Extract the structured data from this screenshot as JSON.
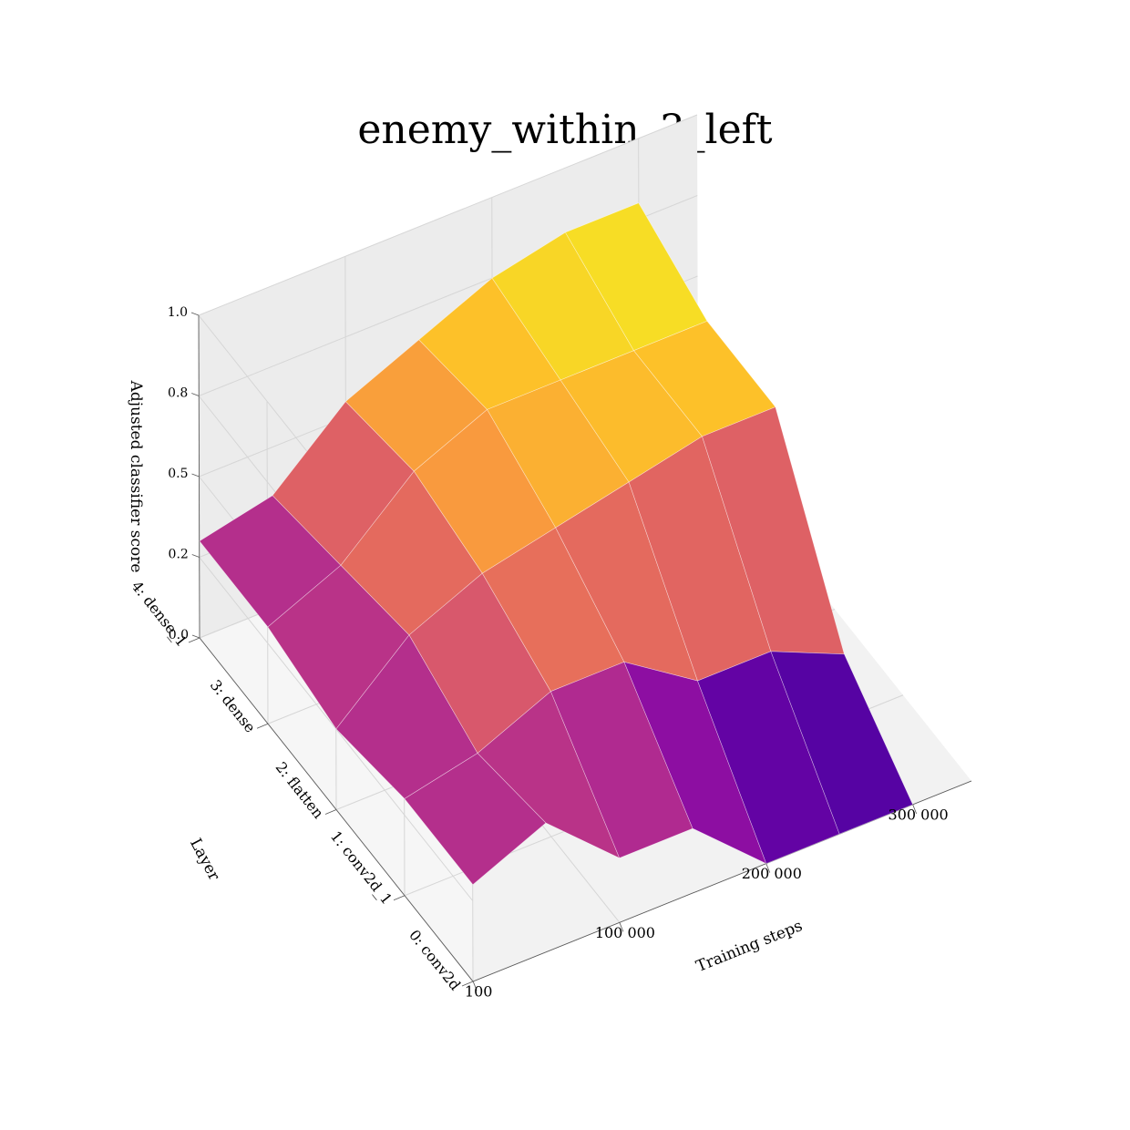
{
  "chart_data": {
    "type": "surface",
    "title": "enemy_within_3_left",
    "xlabel": "Training steps",
    "ylabel": "Layer",
    "zlabel": "Adjusted classifier score",
    "x_tick_labels": [
      "100",
      "100 000",
      "200 000",
      "300 000"
    ],
    "y_tick_labels": [
      "0: conv2d",
      "1: conv2d_1",
      "2: flatten",
      "3: dense",
      "4: dense_1"
    ],
    "z_tick_labels": [
      "0.0",
      "0.2",
      "0.5",
      "0.8",
      "1.0"
    ],
    "x_ticks": [
      100,
      100000,
      200000,
      300000
    ],
    "z_ticks": [
      0.0,
      0.25,
      0.5,
      0.75,
      1.0
    ],
    "x_range": [
      0,
      340000
    ],
    "y_range": [
      0,
      4
    ],
    "z_range": [
      0,
      1
    ],
    "x": [
      100,
      50000,
      100000,
      150000,
      200000,
      250000,
      300000
    ],
    "layers": [
      0,
      1,
      2,
      3,
      4
    ],
    "z": [
      [
        0.3,
        0.4,
        0.2,
        0.2,
        0.0,
        0.0,
        0.0
      ],
      [
        0.3,
        0.35,
        0.45,
        0.45,
        0.3,
        0.3,
        0.2
      ],
      [
        0.25,
        0.45,
        0.55,
        0.6,
        0.65,
        0.7,
        0.7
      ],
      [
        0.3,
        0.4,
        0.6,
        0.7,
        0.7,
        0.7,
        0.7
      ],
      [
        0.3,
        0.35,
        0.55,
        0.65,
        0.75,
        0.8,
        0.8
      ]
    ],
    "colormap": "plasma",
    "grid": true
  }
}
